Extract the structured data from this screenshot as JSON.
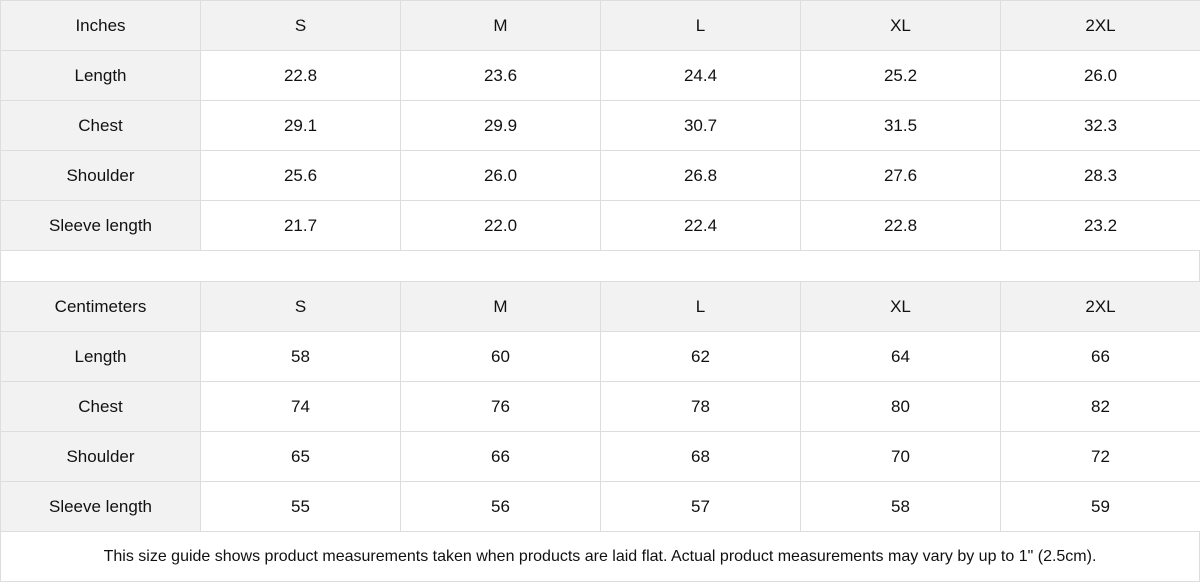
{
  "tables": [
    {
      "unit": "Inches",
      "sizes": [
        "S",
        "M",
        "L",
        "XL",
        "2XL"
      ],
      "rows": [
        {
          "label": "Length",
          "values": [
            "22.8",
            "23.6",
            "24.4",
            "25.2",
            "26.0"
          ]
        },
        {
          "label": "Chest",
          "values": [
            "29.1",
            "29.9",
            "30.7",
            "31.5",
            "32.3"
          ]
        },
        {
          "label": "Shoulder",
          "values": [
            "25.6",
            "26.0",
            "26.8",
            "27.6",
            "28.3"
          ]
        },
        {
          "label": "Sleeve length",
          "values": [
            "21.7",
            "22.0",
            "22.4",
            "22.8",
            "23.2"
          ]
        }
      ]
    },
    {
      "unit": "Centimeters",
      "sizes": [
        "S",
        "M",
        "L",
        "XL",
        "2XL"
      ],
      "rows": [
        {
          "label": "Length",
          "values": [
            "58",
            "60",
            "62",
            "64",
            "66"
          ]
        },
        {
          "label": "Chest",
          "values": [
            "74",
            "76",
            "78",
            "80",
            "82"
          ]
        },
        {
          "label": "Shoulder",
          "values": [
            "65",
            "66",
            "68",
            "70",
            "72"
          ]
        },
        {
          "label": "Sleeve length",
          "values": [
            "55",
            "56",
            "57",
            "58",
            "59"
          ]
        }
      ]
    }
  ],
  "footer_note": "This size guide shows product measurements taken when products are laid flat.  Actual product measurements may vary by up to 1\" (2.5cm).",
  "colors": {
    "header_bg": "#f2f2f2",
    "border": "#dddddd"
  }
}
